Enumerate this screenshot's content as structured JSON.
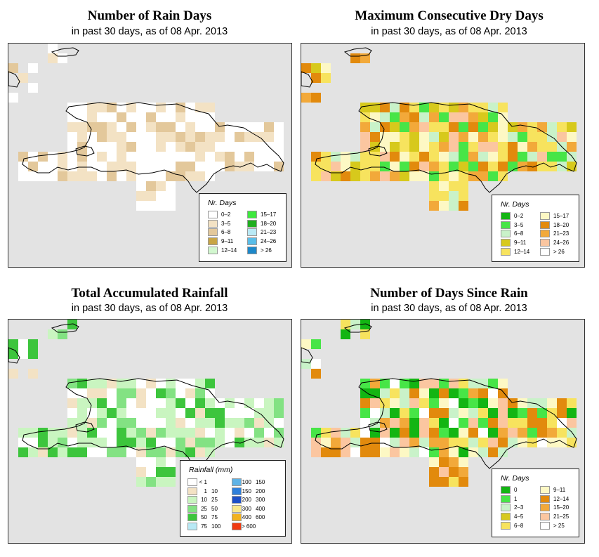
{
  "panels": [
    {
      "id": "rain-days",
      "title": "Number of Rain Days",
      "subtitle": "in past 30 days, as of  08 Apr. 2013",
      "legend": {
        "title": "Nr. Days",
        "items": [
          {
            "label": "0–2",
            "color": "#ffffff"
          },
          {
            "label": "3–5",
            "color": "#f3e2c4"
          },
          {
            "label": "6–8",
            "color": "#e3c89b"
          },
          {
            "label": "9–11",
            "color": "#c8a545"
          },
          {
            "label": "12–14",
            "color": "#d2f7cf"
          },
          {
            "label": "15–17",
            "color": "#3ee83e"
          },
          {
            "label": "18–20",
            "color": "#1fae1f"
          },
          {
            "label": "21–23",
            "color": "#b9e9f5"
          },
          {
            "label": "24–26",
            "color": "#59bde8"
          },
          {
            "label": "> 26",
            "color": "#1d88c9"
          }
        ]
      }
    },
    {
      "id": "dry-days",
      "title": "Maximum Consecutive Dry Days",
      "subtitle": "in past 30 days, as of  08 Apr. 2013",
      "legend": {
        "title": "Nr. Days",
        "items": [
          {
            "label": "0–2",
            "color": "#13b513"
          },
          {
            "label": "3–5",
            "color": "#47e547"
          },
          {
            "label": "6–8",
            "color": "#c9f2c9"
          },
          {
            "label": "9–11",
            "color": "#d7c91c"
          },
          {
            "label": "12–14",
            "color": "#f7e35e"
          },
          {
            "label": "15–17",
            "color": "#fdf8c4"
          },
          {
            "label": "18–20",
            "color": "#e28a0d"
          },
          {
            "label": "21–23",
            "color": "#f2a93a"
          },
          {
            "label": "24–26",
            "color": "#fbc6a0"
          },
          {
            "label": "> 26",
            "color": "#ffffff"
          }
        ]
      }
    },
    {
      "id": "rainfall",
      "title": "Total Accumulated Rainfall",
      "subtitle": "in past 30 days, as of  08 Apr. 2013",
      "legend": {
        "title": "Rainfall (mm)",
        "items": [
          {
            "label": "< 1",
            "label2": "",
            "color": "#ffffff"
          },
          {
            "label": "1",
            "label2": "10",
            "color": "#f3e2c4"
          },
          {
            "label": "10",
            "label2": "25",
            "color": "#c9f5c0"
          },
          {
            "label": "25",
            "label2": "50",
            "color": "#83e283"
          },
          {
            "label": "50",
            "label2": "75",
            "color": "#3dc53d"
          },
          {
            "label": "75",
            "label2": "100",
            "color": "#b8e9f5"
          },
          {
            "label": "100",
            "label2": "150",
            "color": "#5fb3e6"
          },
          {
            "label": "150",
            "label2": "200",
            "color": "#2e7fdb"
          },
          {
            "label": "200",
            "label2": "300",
            "color": "#1c4fc8"
          },
          {
            "label": "300",
            "label2": "400",
            "color": "#f9e88c"
          },
          {
            "label": "400",
            "label2": "600",
            "color": "#f2b21e"
          },
          {
            "label": "> 600",
            "label2": "",
            "color": "#f03a10"
          }
        ]
      }
    },
    {
      "id": "days-since-rain",
      "title": "Number of Days Since Rain",
      "subtitle": "in past 30 days, as of  08 Apr. 2013",
      "legend": {
        "title": "Nr. Days",
        "items": [
          {
            "label": "0",
            "color": "#13b513"
          },
          {
            "label": "1",
            "color": "#47e547"
          },
          {
            "label": "2–3",
            "color": "#c9f2c9"
          },
          {
            "label": "4–5",
            "color": "#d7c91c"
          },
          {
            "label": "6–8",
            "color": "#f7e35e"
          },
          {
            "label": "9–11",
            "color": "#fdf8c4"
          },
          {
            "label": "12–14",
            "color": "#e28a0d"
          },
          {
            "label": "15–20",
            "color": "#f2a93a"
          },
          {
            "label": "21–25",
            "color": "#fbc6a0"
          },
          {
            "label": "> 25",
            "color": "#ffffff"
          }
        ]
      }
    }
  ]
}
